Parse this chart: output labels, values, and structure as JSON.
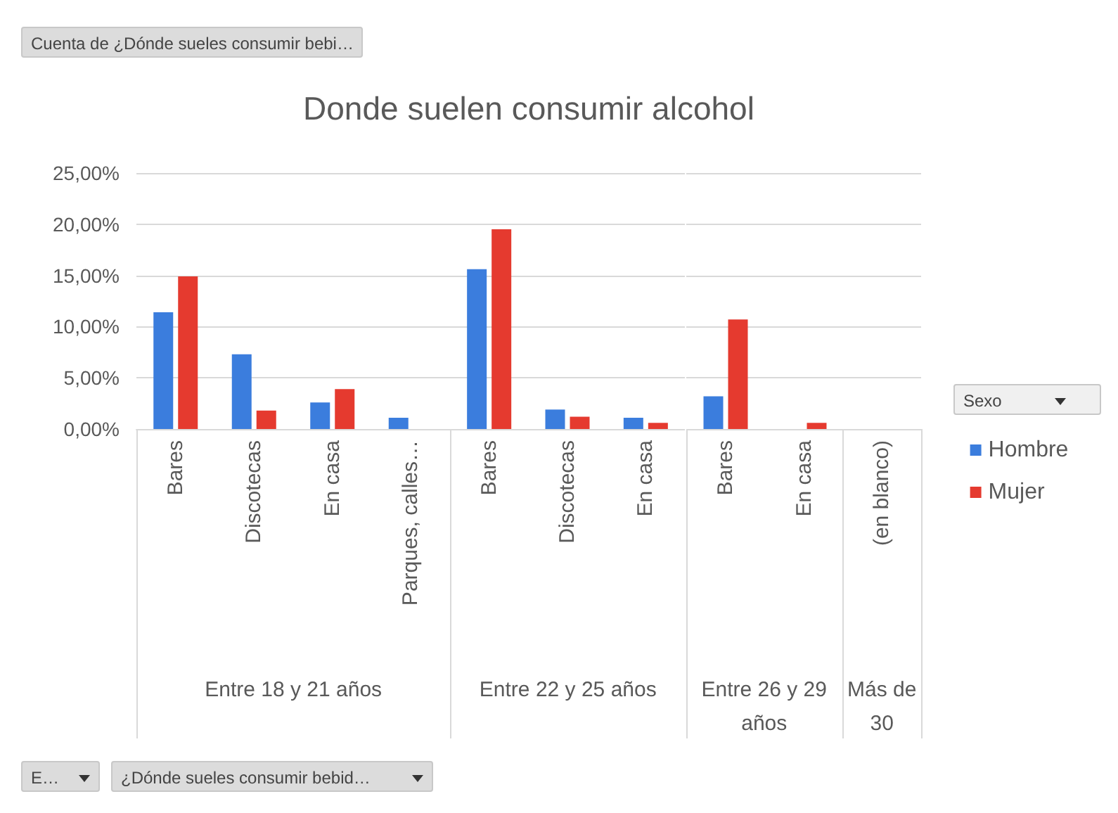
{
  "chart_data": [
    {
      "type": "bar",
      "title": "Donde suelen consumir alcohol",
      "xlabel": "Entre 18 y 21 años",
      "categories": [
        "Bares",
        "Discotecas",
        "En casa",
        "Parques, calles…"
      ],
      "series": [
        {
          "color": "#3b7ddd",
          "values": [
            11.4,
            7.3,
            2.6,
            1.1
          ]
        },
        {
          "color": "#e53a2f",
          "values": [
            14.9,
            1.8,
            3.9,
            null
          ]
        }
      ],
      "ylim": [
        0,
        25
      ],
      "yticks": [
        {
          "value": 0,
          "label": "0,00%"
        },
        {
          "value": 5,
          "label": "5,00%"
        },
        {
          "value": 10,
          "label": "10,00%"
        },
        {
          "value": 15,
          "label": "15,00%"
        },
        {
          "value": 20,
          "label": "20,00%"
        },
        {
          "value": 25,
          "label": "25,00%"
        }
      ],
      "grid": "y",
      "legend": false,
      "annotations": [
        "Cuenta de ¿Dónde sueles consumir bebi…",
        "E…",
        "¿Dónde sueles consumir bebid…"
      ]
    },
    {
      "type": "bar",
      "xlabel": "Entre 22 y 25 años",
      "categories": [
        "Bares",
        "Discotecas",
        "En casa"
      ],
      "series": [
        {
          "color": "#3b7ddd",
          "values": [
            15.6,
            1.9,
            1.1
          ]
        },
        {
          "color": "#e53a2f",
          "values": [
            19.5,
            1.2,
            0.6
          ]
        }
      ],
      "ylim": [
        0,
        25
      ],
      "yticks": [
        0,
        5,
        10,
        15,
        20,
        25
      ],
      "tick_labels": "x",
      "grid": "y",
      "legend": false
    },
    {
      "type": "bar",
      "xlabel": "Entre 26 y 29 años",
      "categories": [
        "Bares",
        "En casa"
      ],
      "series": [
        {
          "color": "#3b7ddd",
          "values": [
            3.2,
            null
          ]
        },
        {
          "color": "#e53a2f",
          "values": [
            10.7,
            0.6
          ]
        }
      ],
      "ylim": [
        0,
        25
      ],
      "yticks": [
        0,
        5,
        10,
        15,
        20,
        25
      ],
      "tick_labels": "x",
      "grid": "y",
      "legend": false
    },
    {
      "type": "bar",
      "xlabel": "Más de 30",
      "categories": [
        "(en blanco)"
      ],
      "series": [
        {
          "name": "Hombre",
          "color": "#3b7ddd",
          "values": [
            null
          ]
        },
        {
          "name": "Mujer",
          "color": "#e53a2f",
          "values": [
            null
          ]
        }
      ],
      "ylim": [
        0,
        25
      ],
      "yticks": [
        0,
        5,
        10,
        15,
        20,
        25
      ],
      "tick_labels": "x",
      "grid": "y",
      "legend": "right",
      "legend_title": "Sexo"
    }
  ]
}
